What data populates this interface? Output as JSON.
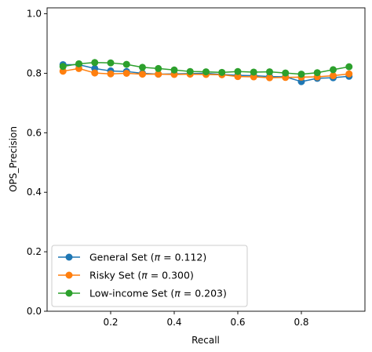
{
  "chart_data": {
    "type": "line",
    "title": "",
    "xlabel": "Recall",
    "ylabel": "OPS_Precision",
    "xlim": [
      0.0,
      1.0
    ],
    "ylim": [
      0.0,
      1.02
    ],
    "x_ticks": [
      0.2,
      0.4,
      0.6,
      0.8
    ],
    "x_tick_labels": [
      "0.2",
      "0.4",
      "0.6",
      "0.8"
    ],
    "y_ticks": [
      0.0,
      0.2,
      0.4,
      0.6,
      0.8,
      1.0
    ],
    "y_tick_labels": [
      "0.0",
      "0.2",
      "0.4",
      "0.6",
      "0.8",
      "1.0"
    ],
    "grid": false,
    "legend_position": "lower-left",
    "x": [
      0.05,
      0.1,
      0.15,
      0.2,
      0.25,
      0.3,
      0.35,
      0.4,
      0.45,
      0.5,
      0.55,
      0.6,
      0.65,
      0.7,
      0.75,
      0.8,
      0.85,
      0.9,
      0.95
    ],
    "series": [
      {
        "name": "General Set (π = 0.112)",
        "label_main": "General Set (",
        "label_symbol": "π",
        "label_rest": " = 0.112)",
        "color": "#1f77b4",
        "values": [
          0.829,
          0.829,
          0.816,
          0.808,
          0.806,
          0.8,
          0.797,
          0.798,
          0.799,
          0.8,
          0.796,
          0.793,
          0.792,
          0.789,
          0.788,
          0.772,
          0.783,
          0.785,
          0.79
        ]
      },
      {
        "name": "Risky Set (π = 0.300)",
        "label_main": "Risky Set (",
        "label_symbol": "π",
        "label_rest": " = 0.300)",
        "color": "#ff7f0e",
        "values": [
          0.807,
          0.816,
          0.801,
          0.798,
          0.8,
          0.797,
          0.797,
          0.796,
          0.797,
          0.796,
          0.795,
          0.789,
          0.788,
          0.785,
          0.786,
          0.787,
          0.788,
          0.792,
          0.798
        ]
      },
      {
        "name": "Low-income Set (π = 0.203)",
        "label_main": "Low-income Set (",
        "label_symbol": "π",
        "label_rest": " = 0.203)",
        "color": "#2ca02c",
        "values": [
          0.823,
          0.832,
          0.836,
          0.835,
          0.83,
          0.82,
          0.816,
          0.811,
          0.806,
          0.805,
          0.803,
          0.806,
          0.804,
          0.805,
          0.801,
          0.797,
          0.802,
          0.812,
          0.822
        ]
      }
    ]
  }
}
